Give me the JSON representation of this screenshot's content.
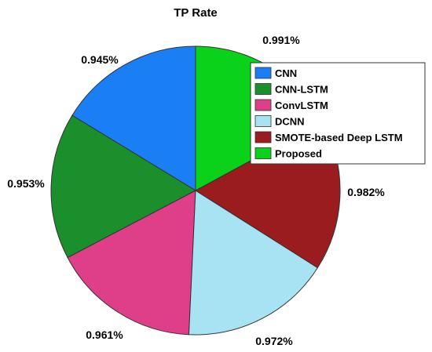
{
  "chart_data": {
    "type": "pie",
    "title": "TP Rate",
    "categories": [
      "CNN",
      "CNN-LSTM",
      "ConvLSTM",
      "DCNN",
      "SMOTE-based Deep LSTM",
      "Proposed"
    ],
    "values": [
      0.945,
      0.953,
      0.961,
      0.972,
      0.982,
      0.991
    ],
    "labels": [
      "0.945%",
      "0.953%",
      "0.961%",
      "0.972%",
      "0.982%",
      "0.991%"
    ],
    "colors": [
      "#1a7ef5",
      "#1a8f2c",
      "#df3f88",
      "#a8e3f3",
      "#9a1c1e",
      "#0ad21a"
    ],
    "legend": {
      "position": "top-right",
      "entries": [
        "CNN",
        "CNN-LSTM",
        "ConvLSTM",
        "DCNN",
        "SMOTE-based Deep LSTM",
        "Proposed"
      ]
    }
  }
}
